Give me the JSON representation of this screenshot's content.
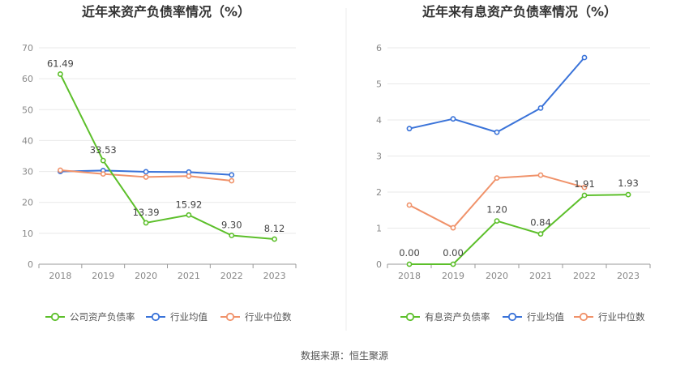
{
  "chart_data": [
    {
      "type": "line",
      "title": "近年来资产负债率情况（%）",
      "x": [
        "2018",
        "2019",
        "2020",
        "2021",
        "2022",
        "2023"
      ],
      "ylim": [
        0,
        70
      ],
      "yticks": [
        0,
        10,
        20,
        30,
        40,
        50,
        60,
        70
      ],
      "grid": true,
      "legend_position": "bottom",
      "series": [
        {
          "name": "公司资产负债率",
          "color": "#5cbf2a",
          "values": [
            61.49,
            33.53,
            13.39,
            15.92,
            9.3,
            8.12
          ],
          "labels": [
            "61.49",
            "33.53",
            "13.39",
            "15.92",
            "9.30",
            "8.12"
          ]
        },
        {
          "name": "行业均值",
          "color": "#3a73d9",
          "values": [
            30.0,
            30.3,
            29.9,
            29.8,
            28.9,
            null
          ]
        },
        {
          "name": "行业中位数",
          "color": "#f0926a",
          "values": [
            30.4,
            29.2,
            28.2,
            28.5,
            27.0,
            null
          ]
        }
      ]
    },
    {
      "type": "line",
      "title": "近年来有息资产负债率情况（%）",
      "x": [
        "2018",
        "2019",
        "2020",
        "2021",
        "2022",
        "2023"
      ],
      "ylim": [
        0,
        6
      ],
      "yticks": [
        0,
        1,
        2,
        3,
        4,
        5,
        6
      ],
      "grid": true,
      "legend_position": "bottom",
      "series": [
        {
          "name": "有息资产负债率",
          "color": "#5cbf2a",
          "values": [
            0.0,
            0.0,
            1.2,
            0.84,
            1.91,
            1.93
          ],
          "labels": [
            "0.00",
            "0.00",
            "1.20",
            "0.84",
            "1.91",
            "1.93"
          ]
        },
        {
          "name": "行业均值",
          "color": "#3a73d9",
          "values": [
            3.76,
            4.03,
            3.66,
            4.33,
            5.73,
            null
          ]
        },
        {
          "name": "行业中位数",
          "color": "#f0926a",
          "values": [
            1.64,
            1.01,
            2.39,
            2.47,
            2.13,
            null
          ]
        }
      ]
    }
  ],
  "source_text": "数据来源：恒生聚源"
}
